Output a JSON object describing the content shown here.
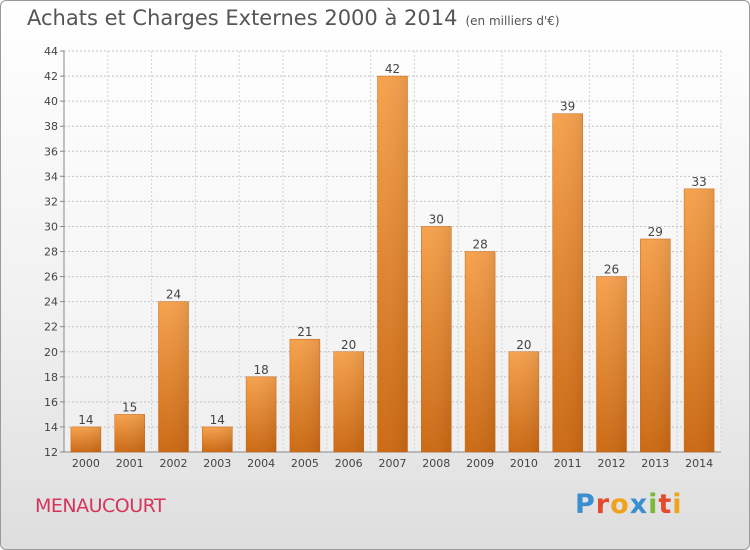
{
  "chart_data": {
    "type": "bar",
    "title": "Achats et Charges Externes 2000 à 2014",
    "subtitle": "(en milliers d'€)",
    "categories": [
      "2000",
      "2001",
      "2002",
      "2003",
      "2004",
      "2005",
      "2006",
      "2007",
      "2008",
      "2009",
      "2010",
      "2011",
      "2012",
      "2013",
      "2014"
    ],
    "values": [
      14,
      15,
      24,
      14,
      18,
      21,
      20,
      42,
      30,
      28,
      20,
      39,
      26,
      29,
      33
    ],
    "ylim": [
      12,
      44
    ],
    "yticks": [
      12,
      14,
      16,
      18,
      20,
      22,
      24,
      26,
      28,
      30,
      32,
      34,
      36,
      38,
      40,
      42,
      44
    ],
    "grid": true,
    "bar_color": "#f08a2e"
  },
  "commune": "MENAUCOURT",
  "logo": {
    "text": "Proxiti",
    "letters": [
      {
        "ch": "P",
        "color": "#3a8fd0"
      },
      {
        "ch": "r",
        "color": "#e24a2b"
      },
      {
        "ch": "o",
        "color": "#f0a21d"
      },
      {
        "ch": "x",
        "color": "#3a8fd0"
      },
      {
        "ch": "i",
        "color": "#7bb83a"
      },
      {
        "ch": "t",
        "color": "#e24a2b"
      },
      {
        "ch": "i",
        "color": "#f0a21d"
      }
    ]
  }
}
